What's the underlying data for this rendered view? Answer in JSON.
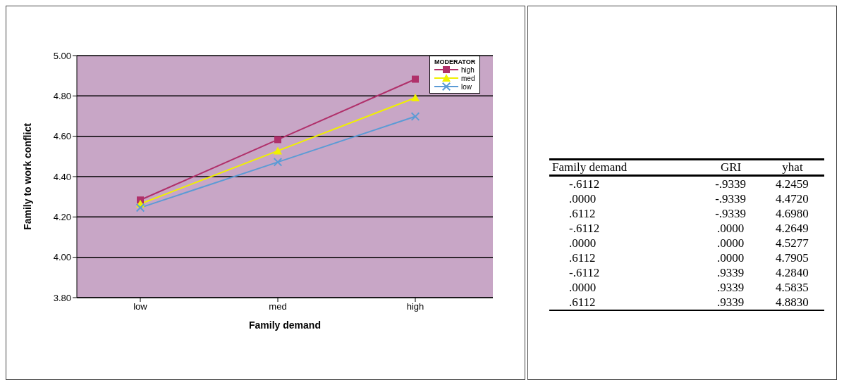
{
  "chart_data": [
    {
      "type": "line",
      "xlabel": "Family demand",
      "ylabel": "Family to work conflict",
      "legend_title": "MODERATOR",
      "categories": [
        "low",
        "med",
        "high"
      ],
      "series": [
        {
          "name": "high",
          "color": "#b0306a",
          "marker": "square",
          "values": [
            4.284,
            4.5835,
            4.883
          ]
        },
        {
          "name": "med",
          "color": "#f0f000",
          "marker": "triangle",
          "values": [
            4.2649,
            4.5277,
            4.7905
          ]
        },
        {
          "name": "low",
          "color": "#5b9bd5",
          "marker": "cross",
          "values": [
            4.2459,
            4.472,
            4.698
          ]
        }
      ],
      "ylim": [
        3.8,
        5.0
      ],
      "yticks": [
        {
          "value": 3.8,
          "label": "3.80"
        },
        {
          "value": 4.0,
          "label": "4.00"
        },
        {
          "value": 4.2,
          "label": "4.20"
        },
        {
          "value": 4.4,
          "label": "4.40"
        },
        {
          "value": 4.6,
          "label": "4.60"
        },
        {
          "value": 4.8,
          "label": "4.80"
        },
        {
          "value": 5.0,
          "label": "5.00"
        }
      ],
      "grid": "y",
      "legend": "top right",
      "line_style": "solid"
    },
    {
      "type": "other",
      "categories": [
        "Family demand",
        "GRI",
        "yhat"
      ],
      "annotations": [
        "-.6112",
        "-.9339",
        "4.2459",
        ".0000",
        "-.9339",
        "4.4720",
        ".6112",
        "-.9339",
        "4.6980",
        "-.6112",
        ".0000",
        "4.2649",
        ".0000",
        ".0000",
        "4.5277",
        ".6112",
        ".0000",
        "4.7905",
        "-.6112",
        ".9339",
        "4.2840",
        ".0000",
        ".9339",
        "4.5835",
        ".6112",
        ".9339",
        "4.8830"
      ]
    }
  ]
}
